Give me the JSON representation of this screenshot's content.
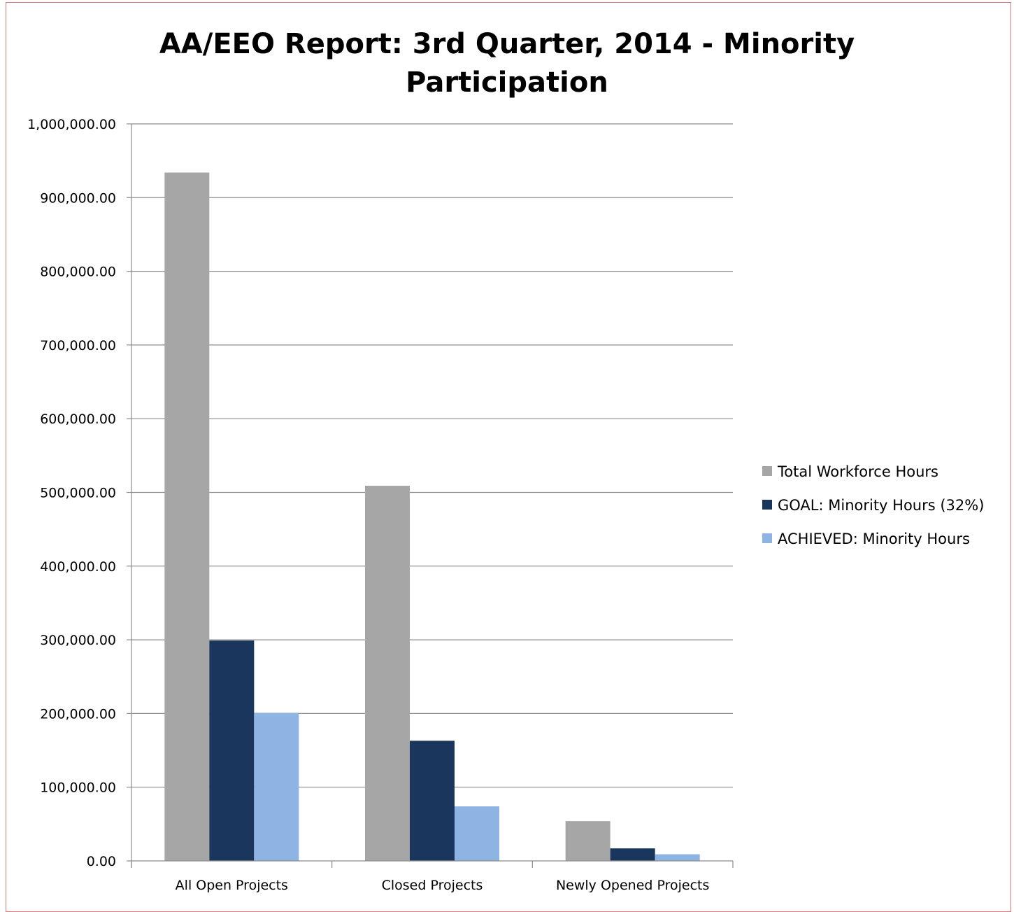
{
  "chart_data": {
    "type": "bar",
    "title_lines": [
      "AA/EEO Report: 3rd Quarter, 2014 - Minority",
      "Participation"
    ],
    "categories": [
      "All Open Projects",
      "Closed Projects",
      "Newly Opened Projects"
    ],
    "series": [
      {
        "name": "Total Workforce Hours",
        "color": "#a6a6a6",
        "values": [
          934000,
          509000,
          54000
        ]
      },
      {
        "name": "GOAL: Minority Hours (32%)",
        "color": "#1b365d",
        "values": [
          299000,
          163000,
          17000
        ]
      },
      {
        "name": "ACHIEVED: Minority Hours",
        "color": "#8eb4e3",
        "values": [
          201000,
          74000,
          9000
        ]
      }
    ],
    "yticks": [
      "0.00",
      "100,000.00",
      "200,000.00",
      "300,000.00",
      "400,000.00",
      "500,000.00",
      "600,000.00",
      "700,000.00",
      "800,000.00",
      "900,000.00",
      "1,000,000.00"
    ],
    "ylim": [
      0,
      1000000
    ],
    "grid": true,
    "legend_position": "right"
  }
}
